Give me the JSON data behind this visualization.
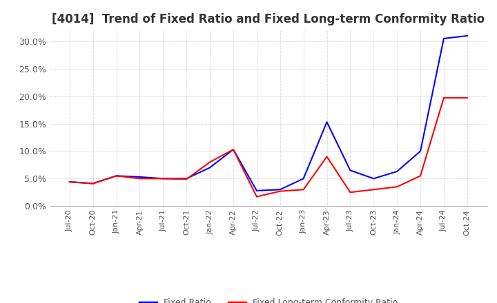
{
  "title": "[4014]  Trend of Fixed Ratio and Fixed Long-term Conformity Ratio",
  "title_fontsize": 12,
  "fixed_ratio": {
    "label": "Fixed Ratio",
    "color": "#0000FF",
    "x": [
      "Jul-20",
      "Oct-20",
      "Jan-21",
      "Apr-21",
      "Jul-21",
      "Oct-21",
      "Jan-22",
      "Apr-22",
      "Jul-22",
      "Oct-22",
      "Jan-23",
      "Apr-23",
      "Jul-23",
      "Oct-23",
      "Jan-24",
      "Apr-24",
      "Jul-24",
      "Oct-24"
    ],
    "y": [
      0.044,
      0.041,
      0.055,
      0.053,
      0.05,
      0.05,
      0.07,
      0.103,
      0.028,
      0.03,
      0.05,
      0.153,
      0.065,
      0.05,
      0.063,
      0.1,
      0.305,
      0.31
    ]
  },
  "fixed_lt_ratio": {
    "label": "Fixed Long-term Conformity Ratio",
    "color": "#FF0000",
    "x": [
      "Jul-20",
      "Oct-20",
      "Jan-21",
      "Apr-21",
      "Jul-21",
      "Oct-21",
      "Jan-22",
      "Apr-22",
      "Jul-22",
      "Oct-22",
      "Jan-23",
      "Apr-23",
      "Jul-23",
      "Oct-23",
      "Jan-24",
      "Apr-24",
      "Jul-24",
      "Oct-24"
    ],
    "y": [
      0.044,
      0.041,
      0.055,
      0.05,
      0.05,
      0.049,
      0.08,
      0.103,
      0.017,
      0.027,
      0.03,
      0.09,
      0.025,
      0.03,
      0.035,
      0.055,
      0.197,
      0.197
    ]
  },
  "ylim": [
    0.0,
    0.32
  ],
  "yticks": [
    0.0,
    0.05,
    0.1,
    0.15,
    0.2,
    0.25,
    0.3
  ],
  "grid_color": "#AAAAAA",
  "background_color": "#FFFFFF",
  "legend_loc": "lower center",
  "legend_ncol": 2,
  "line_width": 1.5
}
